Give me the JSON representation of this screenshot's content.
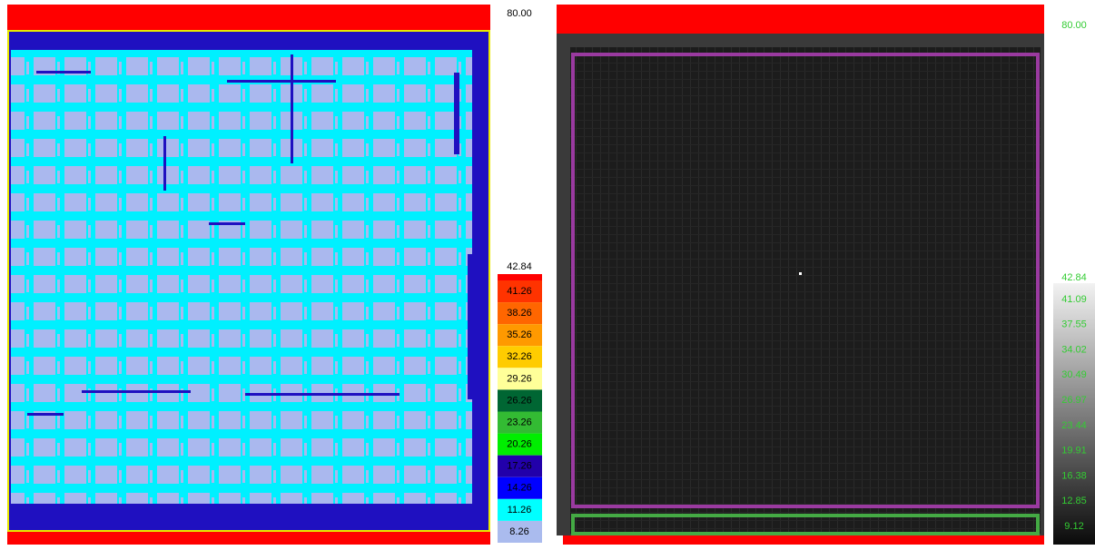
{
  "left_map": {
    "scale_max": "80.00",
    "scale_labels": [
      "42.84",
      "41.26",
      "38.26",
      "35.26",
      "32.26",
      "29.26",
      "26.26",
      "23.26",
      "20.26",
      "17.26",
      "14.26",
      "11.26",
      "8.26"
    ]
  },
  "right_map": {
    "scale_max": "80.00",
    "scale_labels": [
      "42.84",
      "41.09",
      "37.55",
      "34.02",
      "30.49",
      "26.97",
      "23.44",
      "19.91",
      "16.38",
      "12.85",
      "9.12"
    ]
  }
}
